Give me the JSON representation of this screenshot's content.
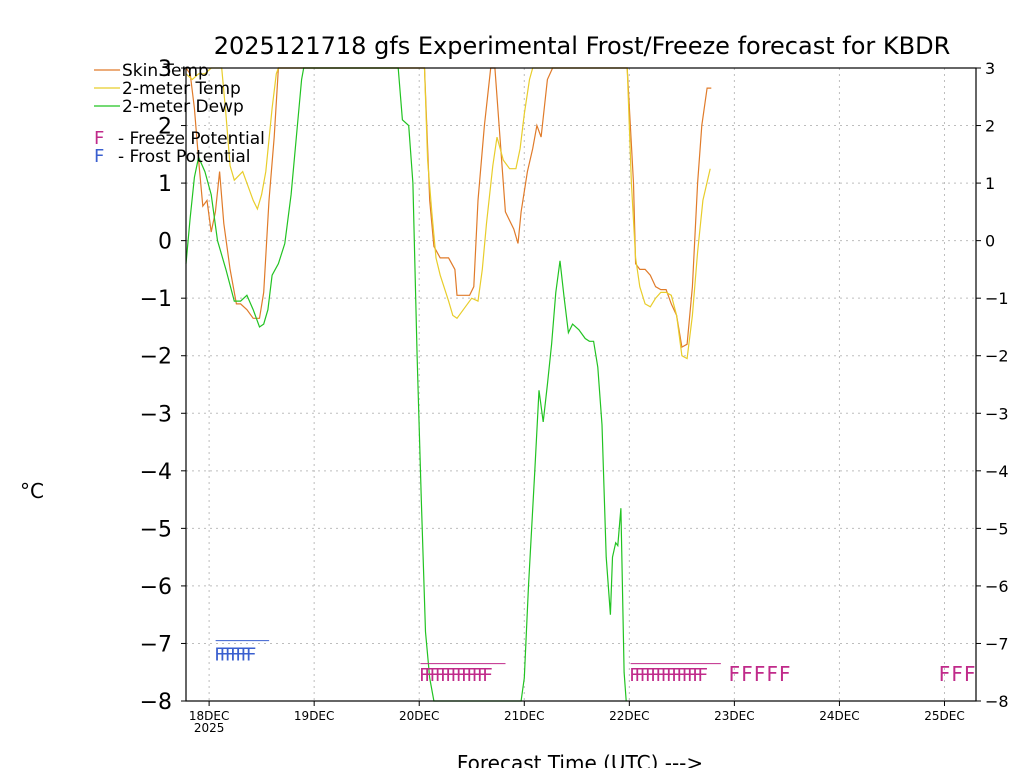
{
  "chart_data": {
    "type": "line",
    "title": "2025121718 gfs Experimental Frost/Freeze forecast for KBDR",
    "xlabel": "Forecast Time (UTC) --->",
    "ylabel": "°C",
    "x_unit": "days since 2025-12-18 00Z",
    "xlim": [
      -0.22,
      7.3
    ],
    "ylim": [
      -8,
      3
    ],
    "yticks": [
      -8,
      -7,
      -6,
      -5,
      -4,
      -3,
      -2,
      -1,
      0,
      1,
      2,
      3
    ],
    "ytick_labels": [
      "−8",
      "−7",
      "−6",
      "−5",
      "−4",
      "−3",
      "−2",
      "−1",
      "0",
      "1",
      "2",
      "3"
    ],
    "xticks": [
      {
        "x": 0,
        "label": "18DEC",
        "sub": "2025"
      },
      {
        "x": 1,
        "label": "19DEC"
      },
      {
        "x": 2,
        "label": "20DEC"
      },
      {
        "x": 3,
        "label": "21DEC"
      },
      {
        "x": 4,
        "label": "22DEC"
      },
      {
        "x": 5,
        "label": "23DEC"
      },
      {
        "x": 6,
        "label": "24DEC"
      },
      {
        "x": 7,
        "label": "25DEC"
      }
    ],
    "grid": true,
    "legend": [
      {
        "name": "Skin Temp",
        "color": "#e07b2a"
      },
      {
        "name": "2-meter Temp",
        "color": "#e8cd2b"
      },
      {
        "name": "2-meter Dewp",
        "color": "#22c322"
      }
    ],
    "potential_legend": [
      {
        "letter": "F",
        "text": "- Freeze Potential",
        "color": "#c02a8a"
      },
      {
        "letter": "F",
        "text": "- Frost Potential",
        "color": "#3a5fcf"
      }
    ],
    "series": [
      {
        "name": "Skin Temp",
        "color": "#e07b2a",
        "points": [
          [
            -0.22,
            3.0
          ],
          [
            -0.18,
            2.9
          ],
          [
            -0.14,
            2.3
          ],
          [
            -0.1,
            1.4
          ],
          [
            -0.06,
            0.6
          ],
          [
            -0.02,
            0.7
          ],
          [
            0.02,
            0.15
          ],
          [
            0.06,
            0.5
          ],
          [
            0.1,
            1.2
          ],
          [
            0.14,
            0.3
          ],
          [
            0.2,
            -0.5
          ],
          [
            0.26,
            -1.1
          ],
          [
            0.3,
            -1.1
          ],
          [
            0.36,
            -1.2
          ],
          [
            0.42,
            -1.35
          ],
          [
            0.48,
            -1.35
          ],
          [
            0.52,
            -0.9
          ],
          [
            0.57,
            0.7
          ],
          [
            0.62,
            1.8
          ],
          [
            0.66,
            3.0
          ],
          [
            2.05,
            3.0
          ],
          [
            2.1,
            0.7
          ],
          [
            2.14,
            -0.1
          ],
          [
            2.2,
            -0.3
          ],
          [
            2.28,
            -0.3
          ],
          [
            2.34,
            -0.5
          ],
          [
            2.36,
            -0.95
          ],
          [
            2.4,
            -0.95
          ],
          [
            2.48,
            -0.95
          ],
          [
            2.52,
            -0.8
          ],
          [
            2.56,
            0.7
          ],
          [
            2.62,
            2.0
          ],
          [
            2.68,
            3.0
          ],
          [
            2.72,
            3.0
          ],
          [
            2.76,
            2.0
          ],
          [
            2.82,
            0.5
          ],
          [
            2.9,
            0.2
          ],
          [
            2.94,
            -0.05
          ],
          [
            2.97,
            0.5
          ],
          [
            3.03,
            1.2
          ],
          [
            3.08,
            1.6
          ],
          [
            3.12,
            2.0
          ],
          [
            3.16,
            1.8
          ],
          [
            3.22,
            2.8
          ],
          [
            3.27,
            3.0
          ],
          [
            3.98,
            3.0
          ],
          [
            4.04,
            1.0
          ],
          [
            4.06,
            -0.4
          ],
          [
            4.1,
            -0.5
          ],
          [
            4.15,
            -0.5
          ],
          [
            4.2,
            -0.6
          ],
          [
            4.25,
            -0.8
          ],
          [
            4.3,
            -0.85
          ],
          [
            4.35,
            -0.85
          ],
          [
            4.4,
            -1.1
          ],
          [
            4.45,
            -1.3
          ],
          [
            4.5,
            -1.85
          ],
          [
            4.55,
            -1.8
          ],
          [
            4.6,
            -0.8
          ],
          [
            4.65,
            1.0
          ],
          [
            4.69,
            2.0
          ],
          [
            4.74,
            2.65
          ],
          [
            4.78,
            2.65
          ]
        ]
      },
      {
        "name": "2-meter Temp",
        "color": "#e8cd2b",
        "points": [
          [
            -0.22,
            2.9
          ],
          [
            -0.16,
            2.8
          ],
          [
            -0.1,
            2.9
          ],
          [
            -0.04,
            2.9
          ],
          [
            0.02,
            3.0
          ],
          [
            0.12,
            3.0
          ],
          [
            0.16,
            2.2
          ],
          [
            0.2,
            1.3
          ],
          [
            0.24,
            1.05
          ],
          [
            0.32,
            1.2
          ],
          [
            0.36,
            1.0
          ],
          [
            0.42,
            0.7
          ],
          [
            0.46,
            0.55
          ],
          [
            0.5,
            0.8
          ],
          [
            0.54,
            1.2
          ],
          [
            0.6,
            2.3
          ],
          [
            0.64,
            2.9
          ],
          [
            0.66,
            3.0
          ],
          [
            2.05,
            3.0
          ],
          [
            2.08,
            1.4
          ],
          [
            2.12,
            0.5
          ],
          [
            2.16,
            -0.3
          ],
          [
            2.2,
            -0.6
          ],
          [
            2.28,
            -1.05
          ],
          [
            2.32,
            -1.3
          ],
          [
            2.36,
            -1.35
          ],
          [
            2.42,
            -1.2
          ],
          [
            2.5,
            -1.0
          ],
          [
            2.56,
            -1.05
          ],
          [
            2.6,
            -0.5
          ],
          [
            2.64,
            0.3
          ],
          [
            2.7,
            1.3
          ],
          [
            2.74,
            1.8
          ],
          [
            2.8,
            1.4
          ],
          [
            2.86,
            1.25
          ],
          [
            2.92,
            1.25
          ],
          [
            2.96,
            1.6
          ],
          [
            3.0,
            2.2
          ],
          [
            3.05,
            2.8
          ],
          [
            3.08,
            3.0
          ],
          [
            3.98,
            3.0
          ],
          [
            4.02,
            1.0
          ],
          [
            4.06,
            -0.3
          ],
          [
            4.1,
            -0.8
          ],
          [
            4.15,
            -1.1
          ],
          [
            4.2,
            -1.15
          ],
          [
            4.25,
            -1.0
          ],
          [
            4.3,
            -0.9
          ],
          [
            4.35,
            -0.9
          ],
          [
            4.4,
            -0.95
          ],
          [
            4.45,
            -1.3
          ],
          [
            4.5,
            -2.0
          ],
          [
            4.55,
            -2.05
          ],
          [
            4.6,
            -1.3
          ],
          [
            4.65,
            -0.2
          ],
          [
            4.7,
            0.7
          ],
          [
            4.77,
            1.25
          ]
        ]
      },
      {
        "name": "2-meter Dewp",
        "color": "#22c322",
        "points": [
          [
            -0.22,
            -0.4
          ],
          [
            -0.18,
            0.4
          ],
          [
            -0.14,
            1.1
          ],
          [
            -0.1,
            1.45
          ],
          [
            -0.04,
            1.2
          ],
          [
            0.02,
            0.8
          ],
          [
            0.08,
            0.0
          ],
          [
            0.16,
            -0.5
          ],
          [
            0.24,
            -1.05
          ],
          [
            0.3,
            -1.05
          ],
          [
            0.36,
            -0.95
          ],
          [
            0.42,
            -1.2
          ],
          [
            0.48,
            -1.5
          ],
          [
            0.52,
            -1.45
          ],
          [
            0.56,
            -1.2
          ],
          [
            0.6,
            -0.6
          ],
          [
            0.66,
            -0.4
          ],
          [
            0.72,
            -0.05
          ],
          [
            0.78,
            0.8
          ],
          [
            0.84,
            2.0
          ],
          [
            0.88,
            2.8
          ],
          [
            0.9,
            3.0
          ],
          [
            1.8,
            3.0
          ],
          [
            1.84,
            2.1
          ],
          [
            1.9,
            2.0
          ],
          [
            1.94,
            1.0
          ],
          [
            1.98,
            -2.0
          ],
          [
            2.02,
            -4.5
          ],
          [
            2.06,
            -6.8
          ],
          [
            2.1,
            -7.6
          ],
          [
            2.14,
            -8.0
          ],
          [
            2.97,
            -8.0
          ],
          [
            3.0,
            -7.6
          ],
          [
            3.04,
            -6.0
          ],
          [
            3.1,
            -4.0
          ],
          [
            3.14,
            -2.6
          ],
          [
            3.18,
            -3.15
          ],
          [
            3.22,
            -2.5
          ],
          [
            3.26,
            -1.8
          ],
          [
            3.3,
            -0.9
          ],
          [
            3.34,
            -0.35
          ],
          [
            3.38,
            -1.0
          ],
          [
            3.42,
            -1.6
          ],
          [
            3.46,
            -1.45
          ],
          [
            3.52,
            -1.55
          ],
          [
            3.58,
            -1.7
          ],
          [
            3.62,
            -1.75
          ],
          [
            3.66,
            -1.75
          ],
          [
            3.7,
            -2.2
          ],
          [
            3.74,
            -3.2
          ],
          [
            3.78,
            -5.5
          ],
          [
            3.82,
            -6.5
          ],
          [
            3.84,
            -5.5
          ],
          [
            3.87,
            -5.25
          ],
          [
            3.89,
            -5.3
          ],
          [
            3.92,
            -4.65
          ],
          [
            3.95,
            -7.5
          ],
          [
            3.97,
            -8.0
          ]
        ]
      }
    ],
    "potential_marks": [
      {
        "type": "Frost",
        "color": "#3a5fcf",
        "x": [
          0.1,
          0.15,
          0.2,
          0.25,
          0.3,
          0.35,
          0.4
        ],
        "letter": "F",
        "bar_y": -6.95
      },
      {
        "type": "Freeze",
        "color": "#c02a8a",
        "x": [
          2.05,
          2.1,
          2.15,
          2.2,
          2.25,
          2.3,
          2.35,
          2.4,
          2.45,
          2.5,
          2.55,
          2.6,
          2.65
        ],
        "letter": "F",
        "bar_y": -7.35
      },
      {
        "type": "Freeze",
        "color": "#c02a8a",
        "x": [
          4.05,
          4.1,
          4.15,
          4.2,
          4.25,
          4.3,
          4.35,
          4.4,
          4.45,
          4.5,
          4.55,
          4.6,
          4.65,
          4.7
        ],
        "letter": "F",
        "bar_y": -7.35
      },
      {
        "type": "Freeze",
        "color": "#c02a8a",
        "x": [
          5.0,
          5.12,
          5.24,
          5.36,
          5.48
        ],
        "letter": "F",
        "bar_y": null
      },
      {
        "type": "Freeze",
        "color": "#c02a8a",
        "x": [
          7.0,
          7.12,
          7.24
        ],
        "letter": "F",
        "bar_y": null
      }
    ]
  }
}
